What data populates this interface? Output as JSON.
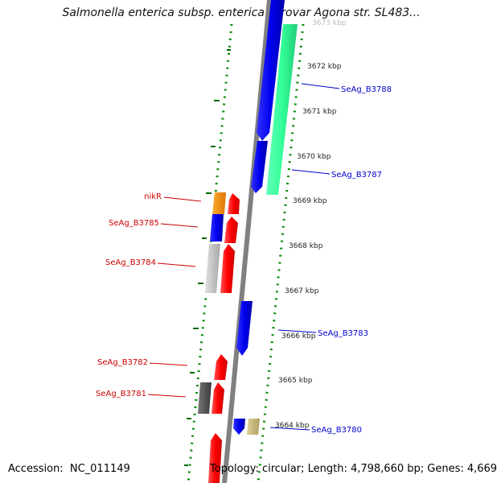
{
  "title": "Salmonella enterica subsp. enterica serovar Agona str. SL483...",
  "footer": {
    "accession_label": "Accession:",
    "accession_value": "NC_011149",
    "topology": "Topology: circular; Length: 4,798,660 bp; Genes: 4,669"
  },
  "map": {
    "top_partial_tick": "3673 kbp",
    "ticks": [
      "3672 kbp",
      "3671 kbp",
      "3670 kbp",
      "3669 kbp",
      "3668 kbp",
      "3667 kbp",
      "3666 kbp",
      "3665 kbp",
      "3664 kbp"
    ],
    "left_labels": [
      "nikR",
      "SeAg_B3785",
      "SeAg_B3784",
      "SeAg_B3782",
      "SeAg_B3781"
    ],
    "right_labels": [
      "SeAg_B3788",
      "SeAg_B3787",
      "SeAg_B3783",
      "SeAg_B3780"
    ]
  },
  "colors": {
    "forward_strand": "#ff0000",
    "reverse_strand": "#0000ff",
    "teal_feature": "#33ff99",
    "orange_feature": "#ff9900",
    "gray_feature": "#c8c8c8",
    "dark_feature": "#5a5a5a",
    "tan_feature": "#c8b878",
    "backbone": "#808080",
    "dotted_guides": "#008800",
    "left_label_color": "#cc0000",
    "right_label_color": "#0000cc"
  }
}
